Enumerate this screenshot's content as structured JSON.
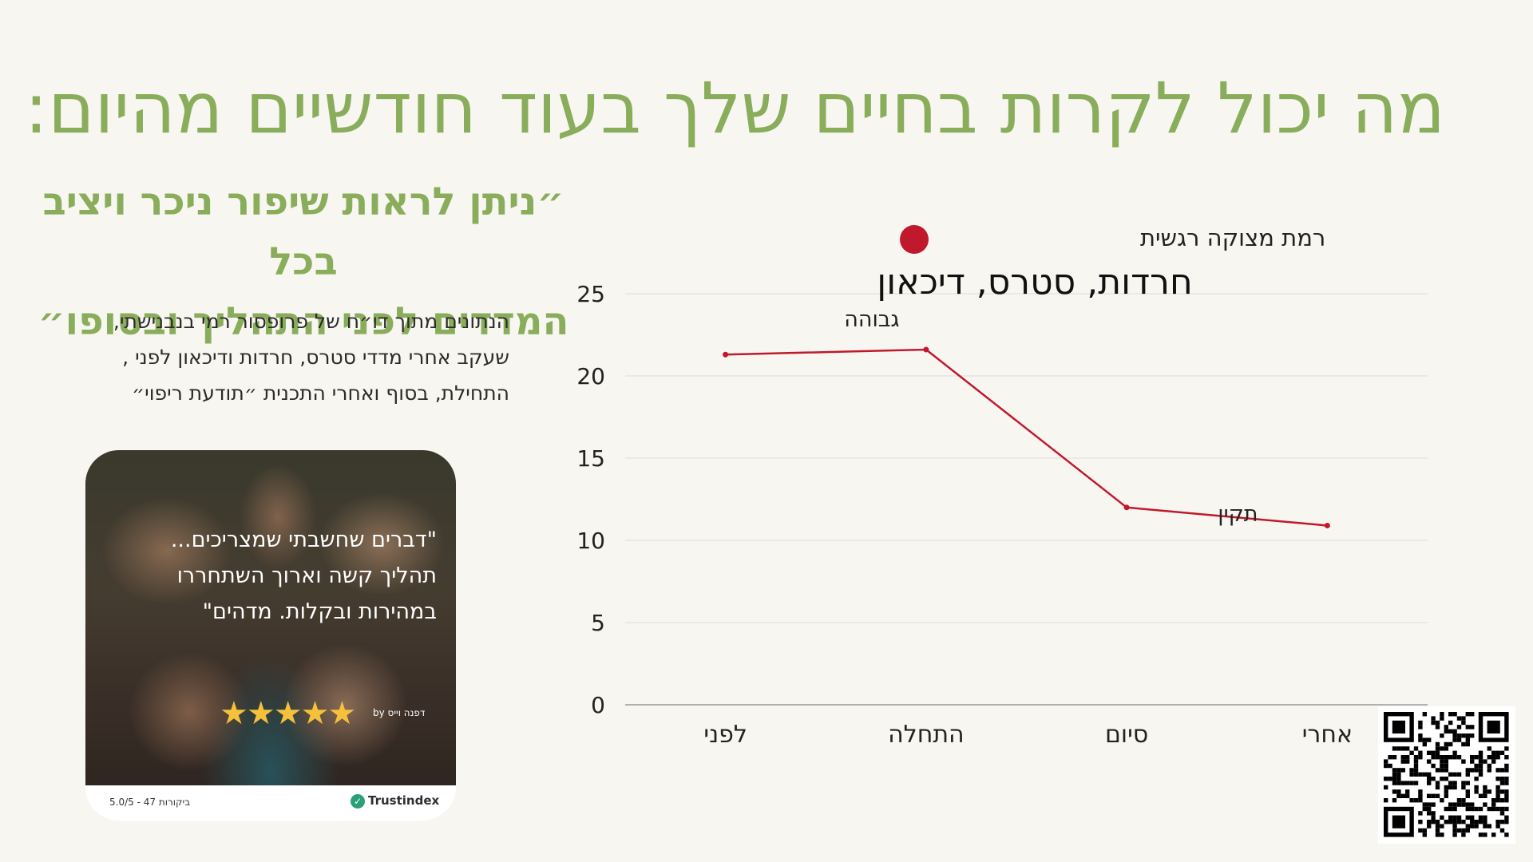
{
  "title": "מה יכול לקרות בחיים שלך בעוד חודשיים מהיום:",
  "quote": {
    "line1": "״ניתן לראות שיפור ניכר ויציב בכל",
    "line2": "המדדים לפני התהליך ובסופו״"
  },
  "description": {
    "line1": "הנתונים מתוך דו״ח של פרופסור רמי בנבנישתי,",
    "line2": "שעקב אחרי מדדי סטרס, חרדות ודיכאון לפני ,",
    "line3": "התחילת, בסוף ואחרי התכנית ״תודעת ריפוי״"
  },
  "review": {
    "quote_line1": "\"דברים שחשבתי שמצריכים...",
    "quote_line2": "תהליך קשה וארוך השתחררו",
    "quote_line3": "במהירות ובקלות. מדהים\"",
    "stars": "★★★★★",
    "author": "by דפנה וייס",
    "count": "5.0/5 - 47 ביקורות",
    "brand": "Trustindex"
  },
  "colors": {
    "title_green": "#8aad5b",
    "series_red": "#c0192c",
    "background": "#f8f6f1"
  },
  "chart_data": {
    "type": "line",
    "title": "חרדות, סטרס, דיכאון",
    "categories": [
      "לפני",
      "התחלה",
      "סיום",
      "אחרי"
    ],
    "series": [
      {
        "name": "רמת מצוקה רגשית",
        "values": [
          21.3,
          21.6,
          12.0,
          10.9
        ],
        "color": "#c0192c"
      }
    ],
    "annotations": [
      {
        "text": "גבוהה",
        "near_category": "התחלה"
      },
      {
        "text": "תקין",
        "near_category": "אחרי"
      }
    ],
    "ylim": [
      0,
      25
    ],
    "yticks": [
      0,
      5,
      10,
      15,
      20,
      25
    ],
    "xlabel": "",
    "ylabel": "",
    "grid": true,
    "legend": "top"
  }
}
